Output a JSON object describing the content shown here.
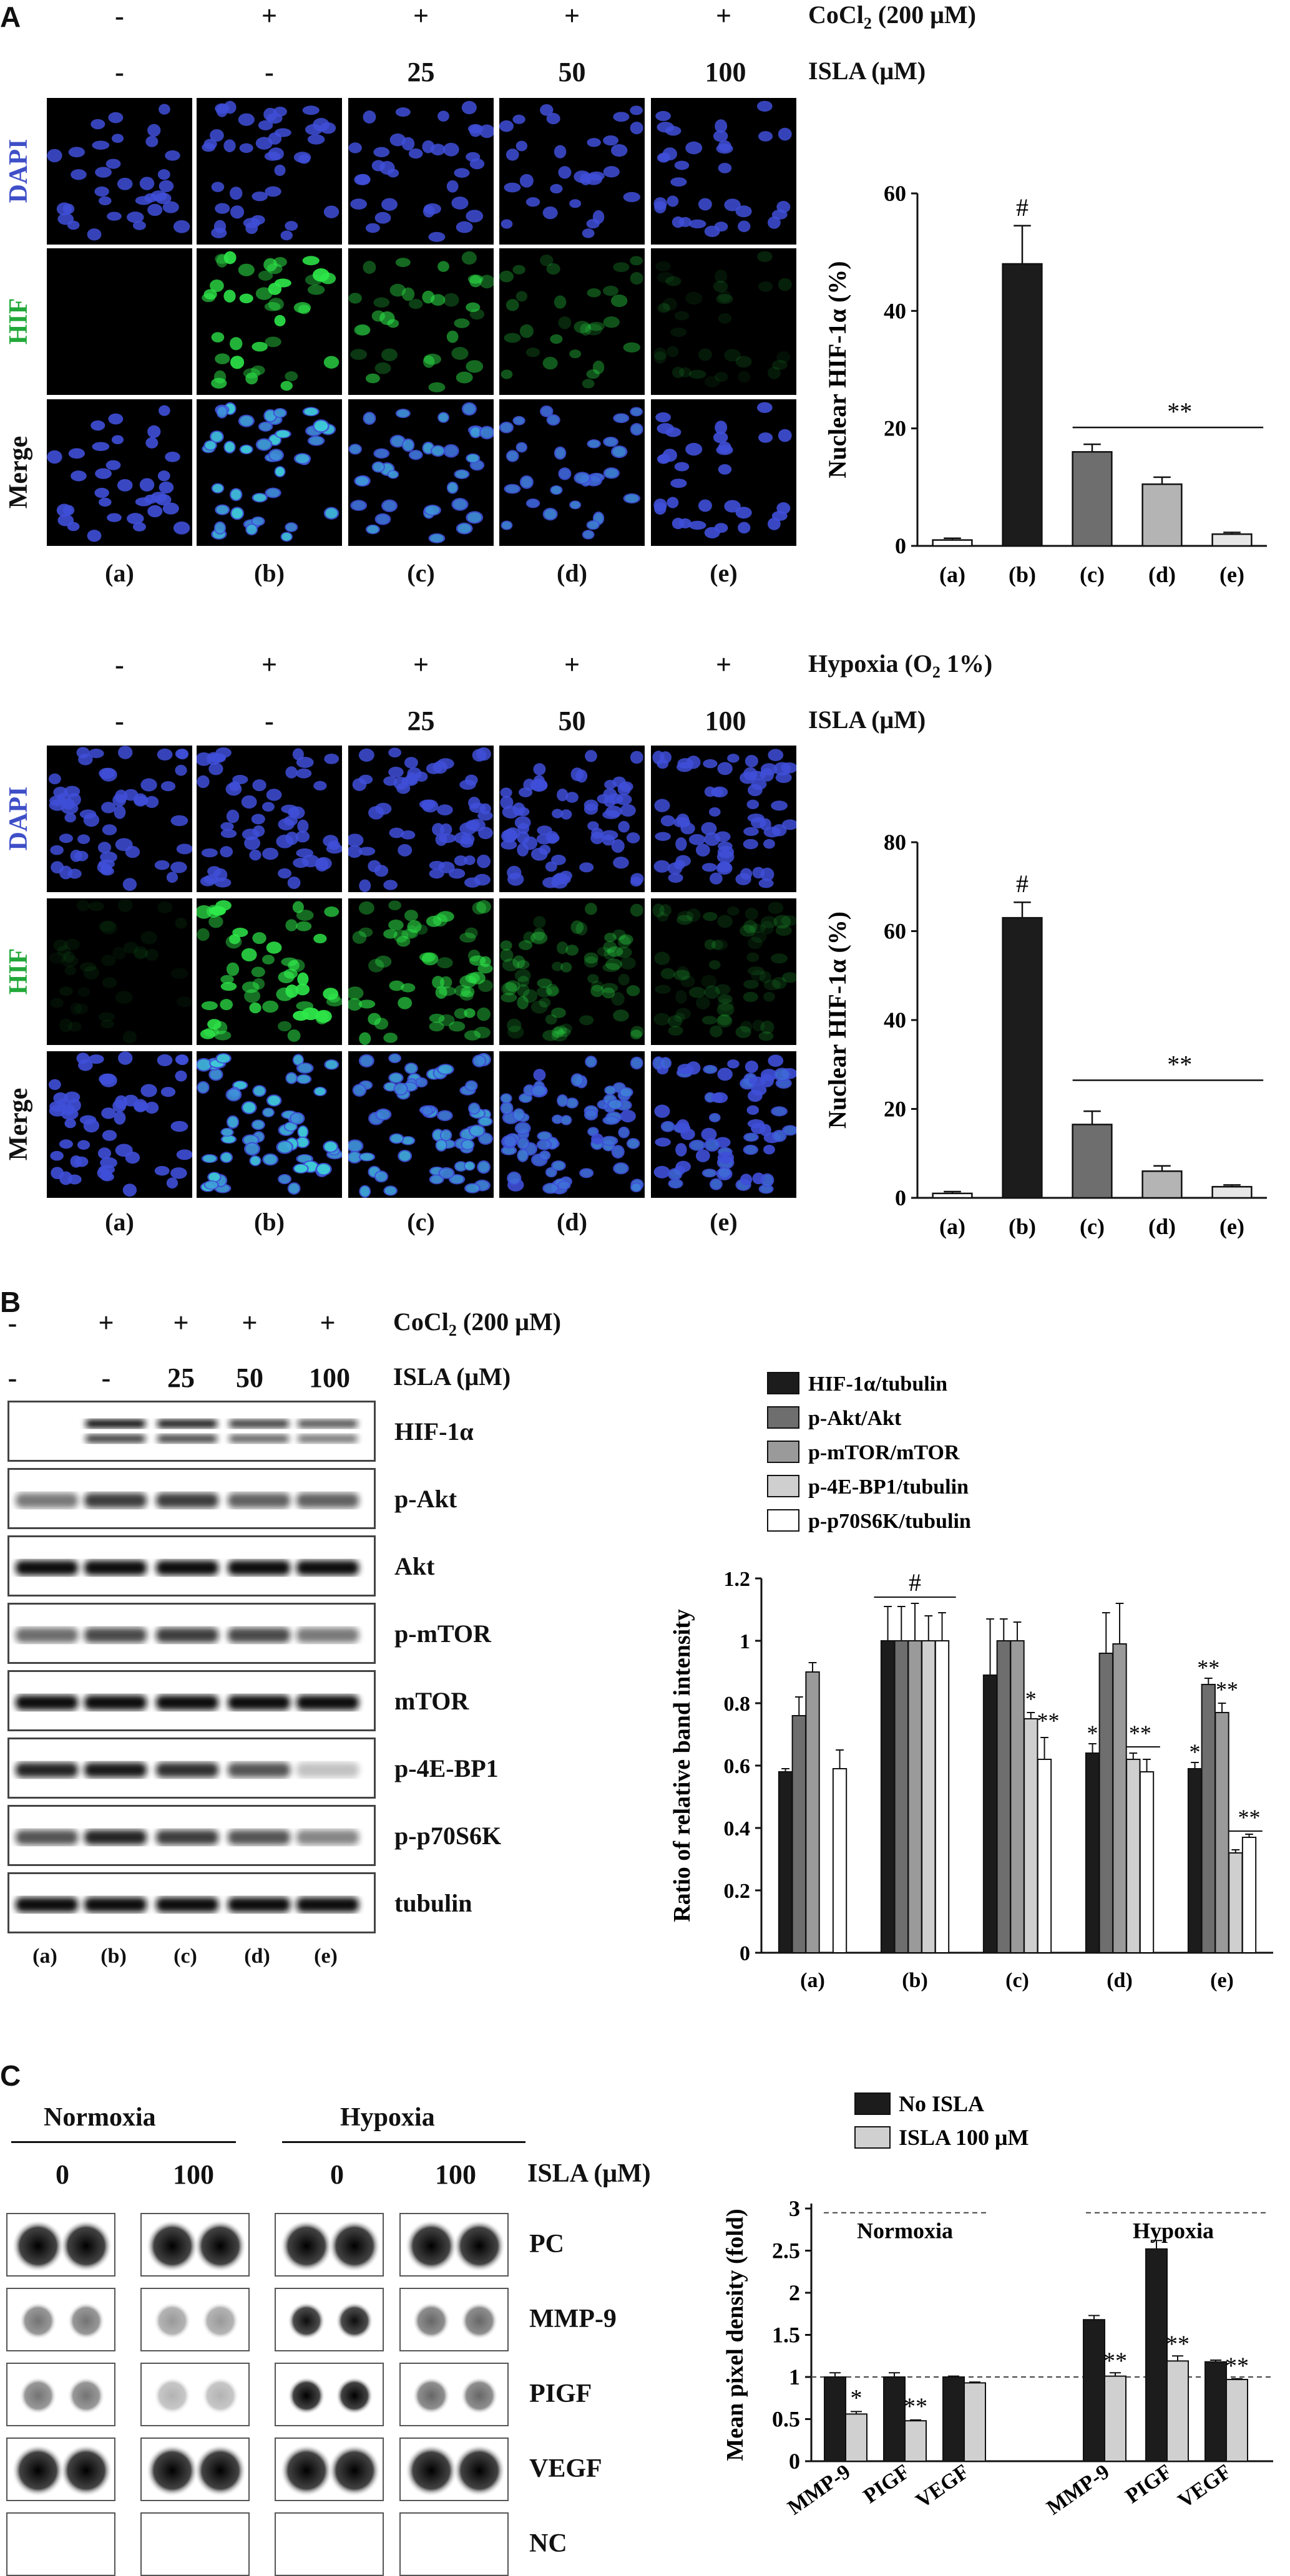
{
  "panels": {
    "A": {
      "letter": "A",
      "top": {
        "conditions": [
          {
            "label": "CoCl2 (200 μM)",
            "label_main": "CoCl",
            "label_sub": "2",
            "label_rest": " (200 μM)",
            "values": [
              "-",
              "+",
              "+",
              "+",
              "+"
            ]
          },
          {
            "label": "ISLA (μM)",
            "values": [
              "-",
              "-",
              "25",
              "50",
              "100"
            ]
          }
        ],
        "row_labels": [
          "DAPI",
          "HIF",
          "Merge"
        ],
        "lane_labels": [
          "(a)",
          "(b)",
          "(c)",
          "(d)",
          "(e)"
        ]
      },
      "bottom": {
        "conditions": [
          {
            "label": "Hypoxia (O2 1%)",
            "label_main": "Hypoxia (O",
            "label_sub": "2",
            "label_rest": " 1%)",
            "values": [
              "-",
              "+",
              "+",
              "+",
              "+"
            ]
          },
          {
            "label": "ISLA (μM)",
            "values": [
              "-",
              "-",
              "25",
              "50",
              "100"
            ]
          }
        ],
        "row_labels": [
          "DAPI",
          "HIF",
          "Merge"
        ],
        "lane_labels": [
          "(a)",
          "(b)",
          "(c)",
          "(d)",
          "(e)"
        ]
      }
    },
    "B": {
      "letter": "B",
      "conditions": [
        {
          "label": "CoCl2 (200 μM)",
          "label_main": "CoCl",
          "label_sub": "2",
          "label_rest": " (200 μM)",
          "values": [
            "-",
            "+",
            "+",
            "+",
            "+"
          ]
        },
        {
          "label": "ISLA (μM)",
          "values": [
            "-",
            "-",
            "25",
            "50",
            "100"
          ]
        }
      ],
      "blot_labels": [
        "HIF-1α",
        "p-Akt",
        "Akt",
        "p-mTOR",
        "mTOR",
        "p-4E-BP1",
        "p-p70S6K",
        "tubulin"
      ],
      "lane_labels": [
        "(a)",
        "(b)",
        "(c)",
        "(d)",
        "(e)"
      ]
    },
    "C": {
      "letter": "C",
      "groups": [
        "Normoxia",
        "Hypoxia"
      ],
      "doses": [
        "0",
        "100",
        "0",
        "100"
      ],
      "dose_label": "ISLA (μM)",
      "spot_labels": [
        "PC",
        "MMP-9",
        "PIGF",
        "VEGF",
        "NC"
      ]
    }
  },
  "chart_data": [
    {
      "type": "bar",
      "title": "",
      "xlabel": "",
      "ylabel": "Nuclear HIF-1α (%)",
      "categories": [
        "(a)",
        "(b)",
        "(c)",
        "(d)",
        "(e)"
      ],
      "values": [
        1,
        48,
        16,
        10.5,
        2
      ],
      "errors": [
        0.3,
        6.5,
        1.3,
        1.2,
        0.3
      ],
      "colors": [
        "#ffffff",
        "#1c1c1c",
        "#6e6e6e",
        "#b4b4b4",
        "#e6e6e6"
      ],
      "ylim": [
        0,
        60
      ],
      "yticks": [
        0,
        20,
        40,
        60
      ],
      "annotations": [
        {
          "text": "#",
          "category": "(b)"
        },
        {
          "text": "**",
          "span": [
            "(c)",
            "(e)"
          ]
        }
      ]
    },
    {
      "type": "bar",
      "title": "",
      "xlabel": "",
      "ylabel": "Nuclear HIF-1α (%)",
      "categories": [
        "(a)",
        "(b)",
        "(c)",
        "(d)",
        "(e)"
      ],
      "values": [
        1,
        63,
        16.5,
        6,
        2.5
      ],
      "errors": [
        0.4,
        3.5,
        3,
        1.2,
        0.4
      ],
      "colors": [
        "#ffffff",
        "#1c1c1c",
        "#6e6e6e",
        "#b4b4b4",
        "#e6e6e6"
      ],
      "ylim": [
        0,
        80
      ],
      "yticks": [
        0,
        20,
        40,
        60,
        80
      ],
      "annotations": [
        {
          "text": "#",
          "category": "(b)"
        },
        {
          "text": "**",
          "span": [
            "(c)",
            "(e)"
          ]
        }
      ]
    },
    {
      "type": "bar",
      "title": "",
      "xlabel": "",
      "ylabel": "Ratio of relative band intensity",
      "categories": [
        "(a)",
        "(b)",
        "(c)",
        "(d)",
        "(e)"
      ],
      "series": [
        {
          "name": "HIF-1α/tubulin",
          "color": "#1c1c1c",
          "values": [
            0.58,
            1.0,
            0.89,
            0.64,
            0.59
          ],
          "errors": [
            0.01,
            0.11,
            0.18,
            0.03,
            0.02
          ]
        },
        {
          "name": "p-Akt/Akt",
          "color": "#6e6e6e",
          "values": [
            0.76,
            1.0,
            1.0,
            0.96,
            0.86
          ],
          "errors": [
            0.06,
            0.11,
            0.07,
            0.13,
            0.02
          ]
        },
        {
          "name": "p-mTOR/mTOR",
          "color": "#9a9a9a",
          "values": [
            0.9,
            1.0,
            1.0,
            0.99,
            0.77
          ],
          "errors": [
            0.03,
            0.12,
            0.06,
            0.13,
            0.03
          ]
        },
        {
          "name": "p-4E-BP1/tubulin",
          "color": "#cfcfcf",
          "values": [
            null,
            1.0,
            0.75,
            0.62,
            0.32
          ],
          "errors": [
            null,
            0.08,
            0.02,
            0.02,
            0.01
          ]
        },
        {
          "name": "p-p70S6K/tubulin",
          "color": "#ffffff",
          "values": [
            0.59,
            1.0,
            0.62,
            0.58,
            0.37
          ],
          "errors": [
            0.06,
            0.09,
            0.07,
            0.04,
            0.01
          ]
        }
      ],
      "ylim": [
        0,
        1.2
      ],
      "yticks": [
        "0",
        "0.2",
        "0.4",
        "0.6",
        "0.8",
        "1",
        "1.2"
      ],
      "annotations": [
        "#",
        "*",
        "**"
      ],
      "legend": "top"
    },
    {
      "type": "bar",
      "title": "",
      "xlabel": "",
      "ylabel": "Mean pixel density (fold)",
      "groups": [
        "Normoxia",
        "Hypoxia"
      ],
      "categories": [
        "MMP-9",
        "PIGF",
        "VEGF",
        "MMP-9",
        "PIGF",
        "VEGF"
      ],
      "series": [
        {
          "name": "No ISLA",
          "color": "#1c1c1c",
          "values": [
            1.0,
            1.0,
            1.0,
            1.68,
            2.52,
            1.18
          ],
          "errors": [
            0.05,
            0.05,
            0.01,
            0.05,
            0.1,
            0.02
          ]
        },
        {
          "name": "ISLA 100 μM",
          "color": "#d0d0d0",
          "values": [
            0.56,
            0.48,
            0.93,
            1.01,
            1.19,
            0.97
          ],
          "errors": [
            0.03,
            0.01,
            0.01,
            0.04,
            0.06,
            0.01
          ]
        }
      ],
      "ylim": [
        0,
        3
      ],
      "yticks": [
        "0",
        "0.5",
        "1",
        "1.5",
        "2",
        "2.5",
        "3"
      ],
      "annotations": [
        "*",
        "**"
      ],
      "legend": "top"
    }
  ]
}
